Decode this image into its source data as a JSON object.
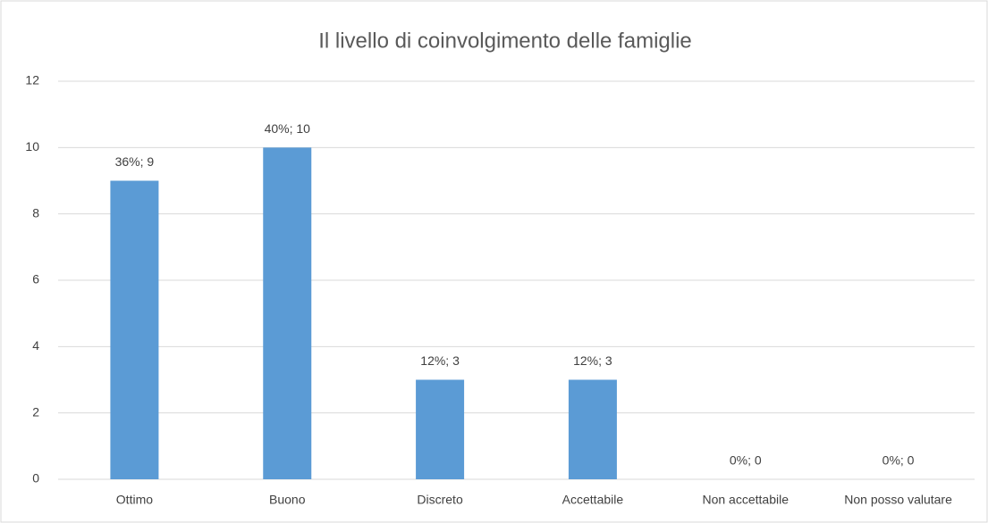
{
  "chart_data": {
    "type": "bar",
    "title": "Il livello di coinvolgimento delle famiglie",
    "categories": [
      "Ottimo",
      "Buono",
      "Discreto",
      "Accettabile",
      "Non accettabile",
      "Non posso valutare"
    ],
    "values": [
      9,
      10,
      3,
      3,
      0,
      0
    ],
    "value_labels": [
      "36%; 9",
      "40%; 10",
      "12%; 3",
      "12%; 3",
      "0%; 0",
      "0%; 0"
    ],
    "color": "#5b9bd5",
    "ylim": [
      0,
      12
    ],
    "yticks": [
      0,
      2,
      4,
      6,
      8,
      10,
      12
    ],
    "grid": true
  }
}
